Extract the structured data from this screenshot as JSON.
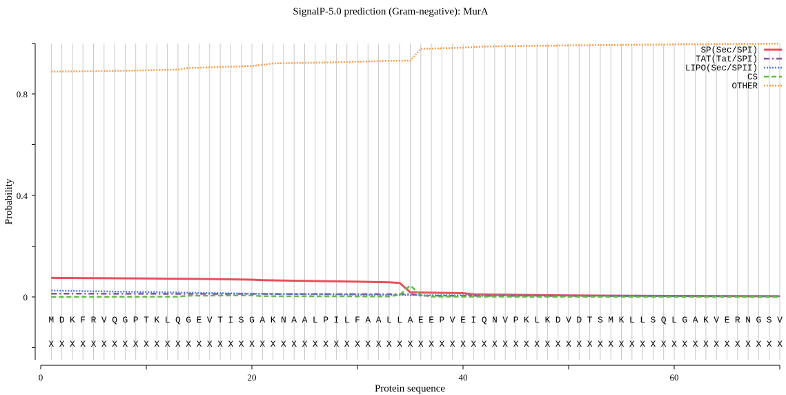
{
  "chart_data": {
    "type": "line",
    "title": "SignalP-5.0 prediction (Gram-negative):  MurA",
    "xlabel": "Protein sequence",
    "ylabel": "Probability",
    "xlim": [
      0,
      70
    ],
    "ylim": [
      -0.25,
      1.0
    ],
    "x_ticks": [
      0,
      20,
      40,
      60
    ],
    "y_ticks": [
      0,
      0.4,
      0.8
    ],
    "y_tick_labels": [
      "0",
      "0.4",
      "0.8"
    ],
    "grid": "vertical lines at each residue",
    "legend_position": "top-right",
    "sequence": [
      "M",
      "D",
      "K",
      "F",
      "R",
      "V",
      "Q",
      "G",
      "P",
      "T",
      "K",
      "L",
      "Q",
      "G",
      "E",
      "V",
      "T",
      "I",
      "S",
      "G",
      "A",
      "K",
      "N",
      "A",
      "A",
      "L",
      "P",
      "I",
      "L",
      "F",
      "A",
      "A",
      "L",
      "L",
      "A",
      "E",
      "E",
      "P",
      "V",
      "E",
      "I",
      "Q",
      "N",
      "V",
      "P",
      "K",
      "L",
      "K",
      "D",
      "V",
      "D",
      "T",
      "S",
      "M",
      "K",
      "L",
      "L",
      "S",
      "Q",
      "L",
      "G",
      "A",
      "K",
      "V",
      "E",
      "R",
      "N",
      "G",
      "S",
      "V"
    ],
    "region_row": [
      "X",
      "X",
      "X",
      "X",
      "X",
      "X",
      "X",
      "X",
      "X",
      "X",
      "X",
      "X",
      "X",
      "X",
      "X",
      "X",
      "X",
      "X",
      "X",
      "X",
      "X",
      "X",
      "X",
      "X",
      "X",
      "X",
      "X",
      "X",
      "X",
      "X",
      "X",
      "X",
      "X",
      "X",
      "X",
      "X",
      "X",
      "X",
      "X",
      "X",
      "X",
      "X",
      "X",
      "X",
      "X",
      "X",
      "X",
      "X",
      "X",
      "X",
      "X",
      "X",
      "X",
      "X",
      "X",
      "X",
      "X",
      "X",
      "X",
      "X",
      "X",
      "X",
      "X",
      "X",
      "X",
      "X",
      "X",
      "X",
      "X",
      "X"
    ],
    "series": [
      {
        "name": "SP(Sec/SPI)",
        "color": "#e8505b",
        "style": "solid",
        "points": [
          [
            1,
            0.075
          ],
          [
            5,
            0.074
          ],
          [
            10,
            0.073
          ],
          [
            15,
            0.071
          ],
          [
            20,
            0.068
          ],
          [
            21,
            0.066
          ],
          [
            25,
            0.063
          ],
          [
            30,
            0.06
          ],
          [
            33,
            0.058
          ],
          [
            34,
            0.055
          ],
          [
            35,
            0.018
          ],
          [
            40,
            0.015
          ],
          [
            41,
            0.01
          ],
          [
            50,
            0.006
          ],
          [
            60,
            0.004
          ],
          [
            70,
            0.003
          ]
        ]
      },
      {
        "name": "TAT(Tat/SPI)",
        "color": "#8e4fa3",
        "style": "dashdot",
        "points": [
          [
            1,
            0.013
          ],
          [
            35,
            0.011
          ],
          [
            36,
            0.005
          ],
          [
            70,
            0.003
          ]
        ]
      },
      {
        "name": "LIPO(Sec/SPII)",
        "color": "#4e7fd6",
        "style": "dotted",
        "points": [
          [
            1,
            0.025
          ],
          [
            20,
            0.013
          ],
          [
            35,
            0.007
          ],
          [
            70,
            0.003
          ]
        ]
      },
      {
        "name": "CS",
        "color": "#5fbf3f",
        "style": "dashed",
        "points": [
          [
            1,
            0.0
          ],
          [
            13,
            0.001
          ],
          [
            14,
            0.005
          ],
          [
            20,
            0.006
          ],
          [
            21,
            0.003
          ],
          [
            33,
            0.002
          ],
          [
            34,
            0.008
          ],
          [
            35,
            0.045
          ],
          [
            36,
            0.008
          ],
          [
            37,
            0.001
          ],
          [
            70,
            0.0
          ]
        ]
      },
      {
        "name": "OTHER",
        "color": "#f5a04a",
        "style": "dotted",
        "points": [
          [
            1,
            0.888
          ],
          [
            6,
            0.89
          ],
          [
            10,
            0.893
          ],
          [
            13,
            0.896
          ],
          [
            14,
            0.902
          ],
          [
            20,
            0.91
          ],
          [
            22,
            0.92
          ],
          [
            28,
            0.925
          ],
          [
            33,
            0.93
          ],
          [
            35,
            0.931
          ],
          [
            36,
            0.978
          ],
          [
            40,
            0.982
          ],
          [
            42,
            0.987
          ],
          [
            50,
            0.991
          ],
          [
            60,
            0.995
          ],
          [
            70,
            0.998
          ]
        ]
      }
    ]
  }
}
